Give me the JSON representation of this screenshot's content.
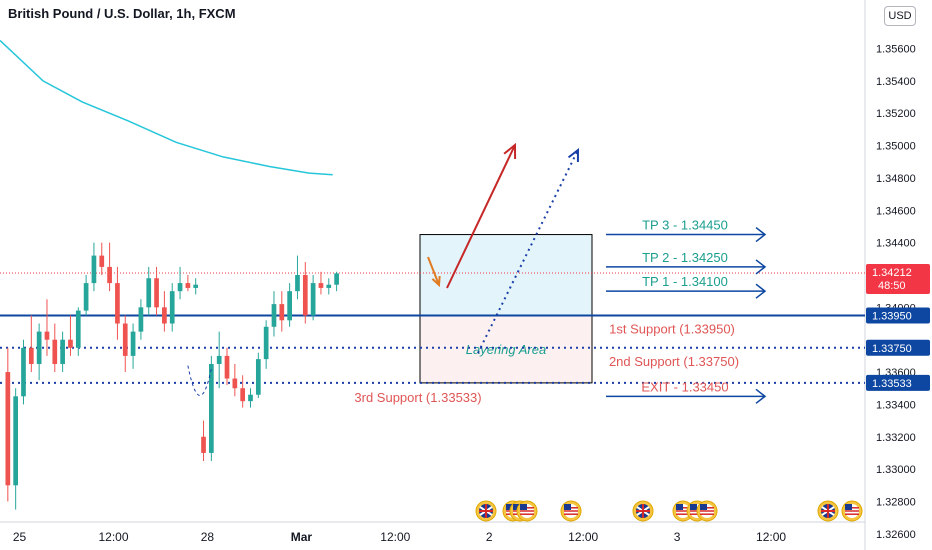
{
  "header": {
    "title": "British Pound / U.S. Dollar, 1h, FXCM",
    "currency_button": "USD"
  },
  "chart_data": {
    "type": "candlestick",
    "symbol": "GBPUSD",
    "timeframe": "1h",
    "ylim": [
      1.325,
      1.359
    ],
    "yticks": [
      "1.35600",
      "1.35400",
      "1.35200",
      "1.35000",
      "1.34800",
      "1.34600",
      "1.34400",
      "1.34000",
      "1.33600",
      "1.33400",
      "1.33200",
      "1.33000",
      "1.32800",
      "1.32600"
    ],
    "xticks": [
      {
        "label": "25",
        "x": 0.0
      },
      {
        "label": "12:00",
        "x": 12
      },
      {
        "label": "28",
        "x": 24
      },
      {
        "label": "Mar",
        "x": 36
      },
      {
        "label": "12:00",
        "x": 48
      },
      {
        "label": "2",
        "x": 60
      },
      {
        "label": "12:00",
        "x": 72
      },
      {
        "label": "3",
        "x": 84
      },
      {
        "label": "12:00",
        "x": 96
      }
    ],
    "xrange": [
      -2.5,
      108
    ],
    "candles": [
      [
        1.336,
        1.3375,
        1.328,
        1.329
      ],
      [
        1.329,
        1.335,
        1.3275,
        1.3345
      ],
      [
        1.3345,
        1.338,
        1.334,
        1.3375
      ],
      [
        1.3375,
        1.3395,
        1.336,
        1.3365
      ],
      [
        1.3365,
        1.339,
        1.3355,
        1.3385
      ],
      [
        1.3385,
        1.3405,
        1.337,
        1.338
      ],
      [
        1.338,
        1.339,
        1.336,
        1.3365
      ],
      [
        1.3365,
        1.3385,
        1.336,
        1.338
      ],
      [
        1.338,
        1.3395,
        1.337,
        1.3375
      ],
      [
        1.3375,
        1.34,
        1.337,
        1.3398
      ],
      [
        1.3398,
        1.342,
        1.3395,
        1.3415
      ],
      [
        1.3415,
        1.344,
        1.341,
        1.3432
      ],
      [
        1.3432,
        1.344,
        1.342,
        1.3425
      ],
      [
        1.3425,
        1.344,
        1.341,
        1.3415
      ],
      [
        1.3415,
        1.3425,
        1.338,
        1.339
      ],
      [
        1.339,
        1.3395,
        1.336,
        1.337
      ],
      [
        1.337,
        1.339,
        1.3362,
        1.3385
      ],
      [
        1.3385,
        1.3405,
        1.338,
        1.34
      ],
      [
        1.34,
        1.3425,
        1.3395,
        1.3418
      ],
      [
        1.3418,
        1.3425,
        1.3395,
        1.34
      ],
      [
        1.34,
        1.341,
        1.3385,
        1.339
      ],
      [
        1.339,
        1.3415,
        1.3385,
        1.341
      ],
      [
        1.341,
        1.3425,
        1.3405,
        1.3415
      ],
      [
        1.3415,
        1.342,
        1.341,
        1.3412
      ],
      [
        1.3412,
        1.3418,
        1.3408,
        1.3414
      ],
      [
        1.332,
        1.333,
        1.3305,
        1.331
      ],
      [
        1.331,
        1.337,
        1.3305,
        1.3365
      ],
      [
        1.3365,
        1.3385,
        1.335,
        1.337
      ],
      [
        1.337,
        1.3375,
        1.3352,
        1.3356
      ],
      [
        1.3356,
        1.3365,
        1.3345,
        1.335
      ],
      [
        1.335,
        1.3358,
        1.3338,
        1.3342
      ],
      [
        1.3342,
        1.335,
        1.3338,
        1.3346
      ],
      [
        1.3346,
        1.3372,
        1.3344,
        1.3368
      ],
      [
        1.3368,
        1.3392,
        1.3362,
        1.3388
      ],
      [
        1.3388,
        1.341,
        1.3382,
        1.3402
      ],
      [
        1.3402,
        1.341,
        1.3385,
        1.3392
      ],
      [
        1.3392,
        1.3415,
        1.3388,
        1.341
      ],
      [
        1.341,
        1.3432,
        1.3405,
        1.342
      ],
      [
        1.342,
        1.3428,
        1.339,
        1.3395
      ],
      [
        1.3395,
        1.342,
        1.3392,
        1.3415
      ],
      [
        1.3415,
        1.3422,
        1.3408,
        1.3412
      ],
      [
        1.3412,
        1.3418,
        1.3408,
        1.3414
      ],
      [
        1.3414,
        1.3422,
        1.341,
        1.3421
      ]
    ],
    "moving_average": {
      "color": "#26c6da",
      "points": [
        [
          -2.5,
          1.3565
        ],
        [
          3,
          1.354
        ],
        [
          8,
          1.3527
        ],
        [
          14,
          1.3515
        ],
        [
          20,
          1.3502
        ],
        [
          26,
          1.3493
        ],
        [
          32,
          1.3487
        ],
        [
          37,
          1.3483
        ],
        [
          40,
          1.3482
        ]
      ]
    },
    "levels": [
      {
        "name": "tp3",
        "label": "TP 3 - 1.34450",
        "value": 1.3445,
        "color": "#1a9e8f"
      },
      {
        "name": "tp2",
        "label": "TP 2 - 1.34250",
        "value": 1.3425,
        "color": "#1a9e8f"
      },
      {
        "name": "tp1",
        "label": "TP 1 - 1.34100",
        "value": 1.341,
        "color": "#1a9e8f"
      },
      {
        "name": "support1",
        "label": "1st Support (1.33950)",
        "value": 1.3395,
        "color": "#e05555"
      },
      {
        "name": "support2",
        "label": "2nd Support (1.33750)",
        "value": 1.3375,
        "color": "#e05555"
      },
      {
        "name": "support3",
        "label": "3rd Support (1.33533)",
        "value": 1.33533,
        "color": "#e05555"
      },
      {
        "name": "exit",
        "label": "EXIT - 1.33450",
        "value": 1.3345,
        "color": "#e05555"
      }
    ],
    "price_tags": [
      {
        "name": "current-price",
        "label": "1.34212",
        "sub": "48:50",
        "value": 1.34212,
        "color": "#f23645"
      },
      {
        "name": "level-1.33950",
        "label": "1.33950",
        "value": 1.3395,
        "color": "#0d47a1"
      },
      {
        "name": "level-1.33750",
        "label": "1.33750",
        "value": 1.3375,
        "color": "#0d47a1"
      },
      {
        "name": "level-1.33533",
        "label": "1.33533",
        "value": 1.33533,
        "color": "#0d47a1"
      }
    ],
    "zone_label": "Layering Area",
    "colors": {
      "up": "#26a69a",
      "down": "#ef5350",
      "blue_line": "#0d47a1",
      "dotted": "#1a3fa8",
      "arrow_red": "#c62828",
      "arrow_orange": "#e07b20"
    },
    "event_icons": [
      "gb-flag",
      "us-flag",
      "us-flag",
      "us-flag",
      "us-flag",
      "gb-flag",
      "us-flag",
      "us-flag",
      "us-flag",
      "gb-flag",
      "us-flag"
    ]
  }
}
